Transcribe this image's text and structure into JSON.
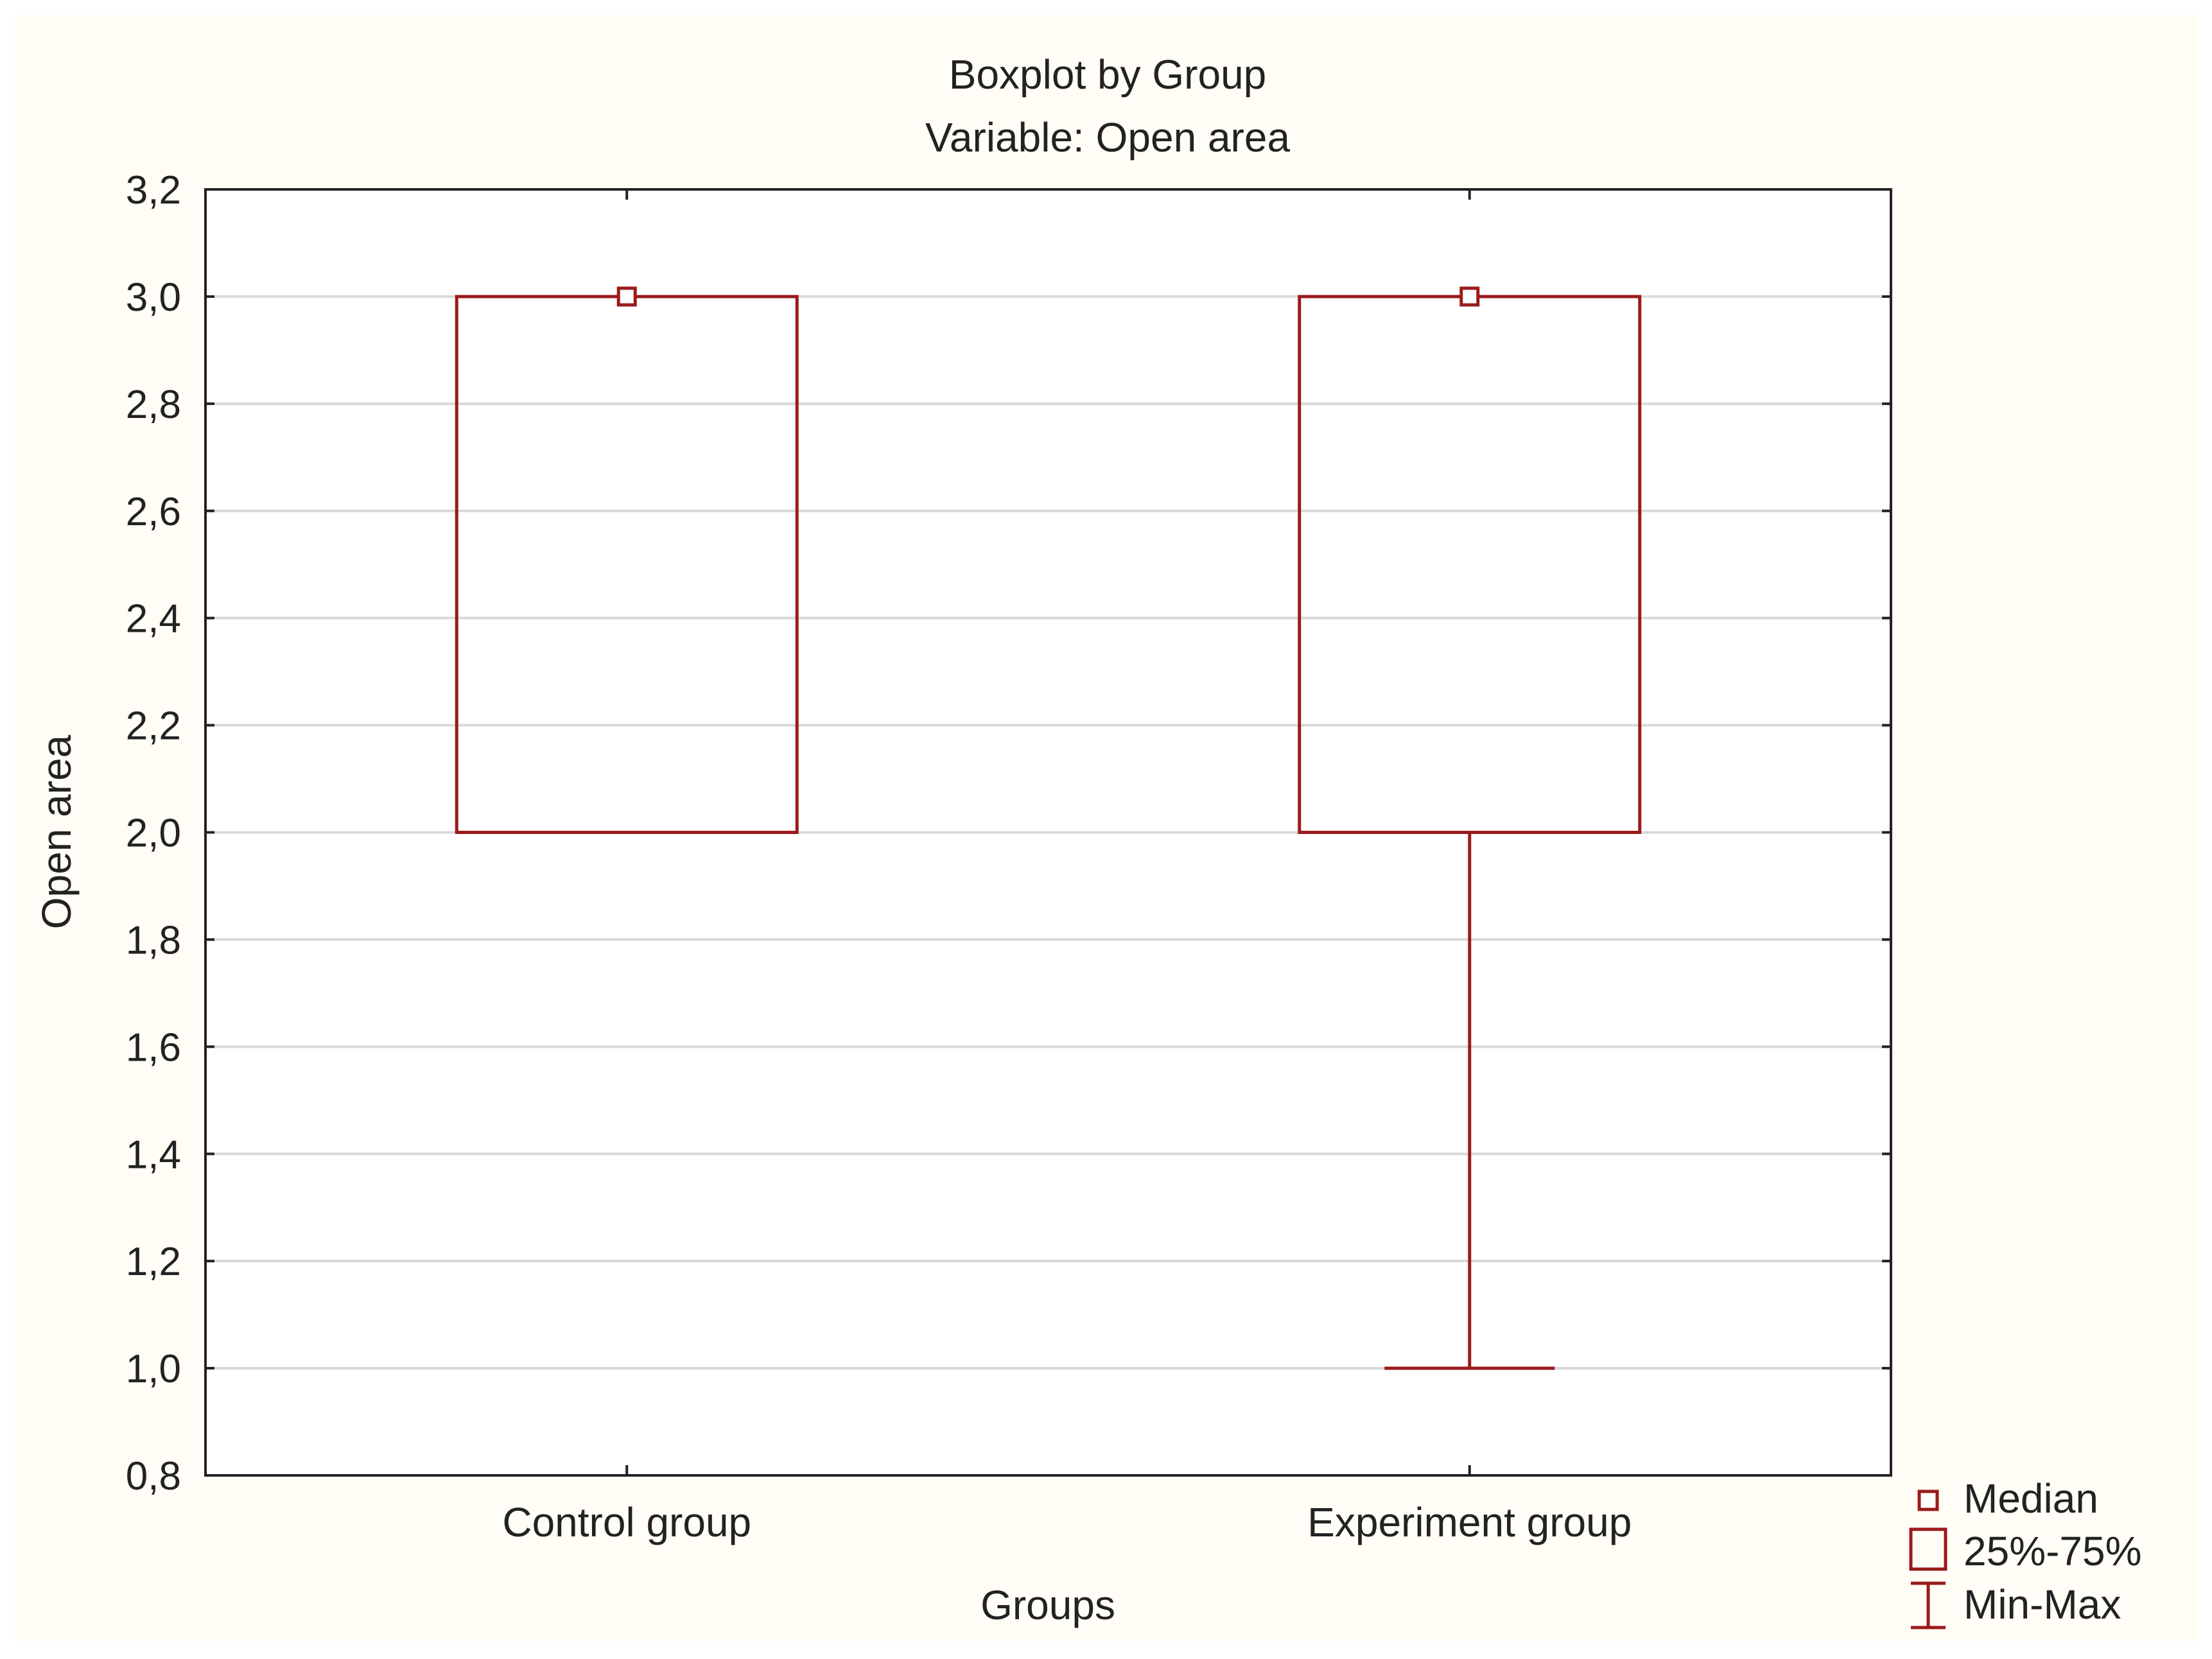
{
  "chart_data": {
    "type": "boxplot",
    "title": "Boxplot by Group",
    "subtitle": "Variable: Open area",
    "xlabel": "Groups",
    "ylabel": "Open area",
    "ylim": [
      0.8,
      3.2
    ],
    "yticks": [
      0.8,
      1.0,
      1.2,
      1.4,
      1.6,
      1.8,
      2.0,
      2.2,
      2.4,
      2.6,
      2.8,
      3.0,
      3.2
    ],
    "ytick_labels": [
      "0,8",
      "1,0",
      "1,2",
      "1,4",
      "1,6",
      "1,8",
      "2,0",
      "2,2",
      "2,4",
      "2,6",
      "2,8",
      "3,0",
      "3,2"
    ],
    "grid": true,
    "legend_position": "bottom-right",
    "legend": [
      "Median",
      "25%-75%",
      "Min-Max"
    ],
    "categories": [
      "Control group",
      "Experiment group"
    ],
    "boxes": [
      {
        "category": "Control group",
        "min": 2.0,
        "q1": 2.0,
        "median": 3.0,
        "q3": 3.0,
        "max": 3.0
      },
      {
        "category": "Experiment group",
        "min": 1.0,
        "q1": 2.0,
        "median": 3.0,
        "q3": 3.0,
        "max": 3.0
      }
    ]
  },
  "colors": {
    "background": "#fffdf6",
    "plot_background": "#ffffff",
    "box": "#9b1b1b",
    "grid": "#d9d9d9",
    "axis": "#222222"
  }
}
